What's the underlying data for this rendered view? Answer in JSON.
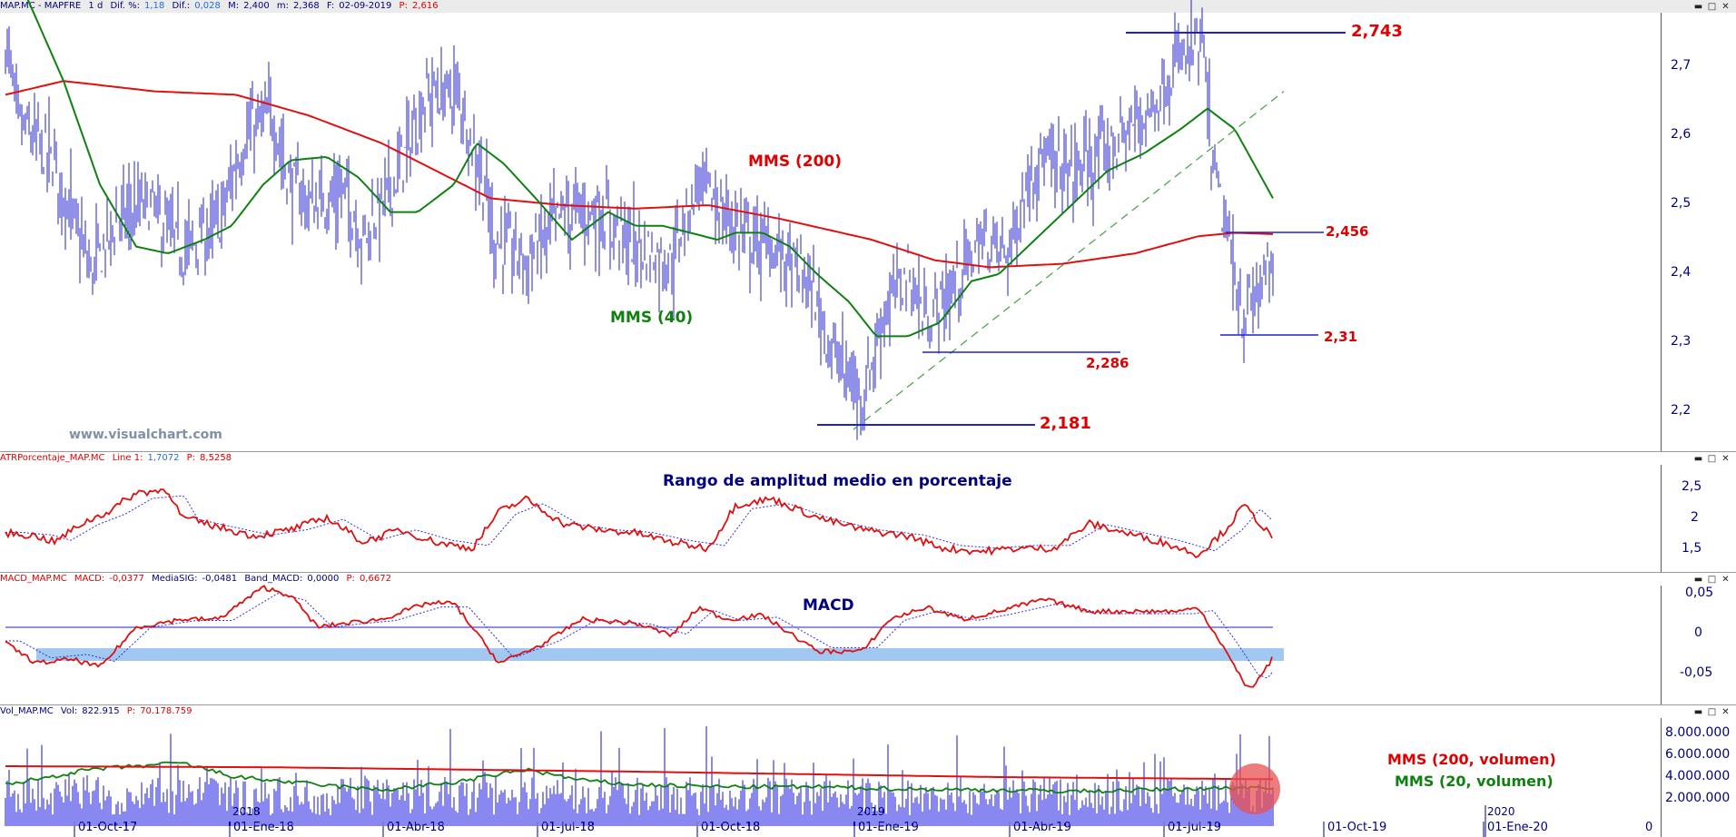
{
  "colors": {
    "price_bars": "#2020d0",
    "ma200": "#e01010",
    "ma40": "#108010",
    "axis_text": "#000080",
    "annotation_red": "#e00000",
    "annotation_green": "#108010",
    "macd_band": "#a0c8f0",
    "volume_bars": "#1010e0",
    "highlight_circle": "#e85050"
  },
  "header": {
    "symbol": "MAP.MC - MAPFRE",
    "period": "1 d",
    "dif_pct_label": "Dif. %:",
    "dif_pct": "1,18",
    "dif_label": "Dif.:",
    "dif": "0,028",
    "max_label": "M:",
    "max": "2,400",
    "min_label": "m:",
    "min": "2,368",
    "date_label": "F:",
    "date": "02-09-2019",
    "close_label": "P:",
    "close": "2,616"
  },
  "window_buttons": {
    "minimize": "▬",
    "restore": "□",
    "close": "✕"
  },
  "watermark": "www.visualchart.com",
  "price_panel": {
    "y_ticks": [
      "2,7",
      "2,6",
      "2,5",
      "2,4",
      "2,3",
      "2,2"
    ],
    "annotations": {
      "ma200": "MMS (200)",
      "ma40": "MMS (40)",
      "level_high": "2,743",
      "level_456": "2,456",
      "level_31": "2,31",
      "level_286": "2,286",
      "level_low": "2,181"
    }
  },
  "atr_panel": {
    "label": "ATRPorcentaje_MAP.MC",
    "line_label": "Line 1:",
    "line_value": "1,7072",
    "p_label": "P:",
    "p_value": "8,5258",
    "title": "Rango de amplitud medio en porcentaje",
    "y_ticks": [
      "2,5",
      "2",
      "1,5"
    ]
  },
  "macd_panel": {
    "label": "MACD_MAP.MC",
    "macd_label": "MACD:",
    "macd_value": "-0,0377",
    "sig_label": "MediaSIG:",
    "sig_value": "-0,0481",
    "band_label": "Band_MACD:",
    "band_value": "0,0000",
    "p_label": "P:",
    "p_value": "0,6672",
    "title": "MACD",
    "y_ticks": [
      "0,05",
      "0",
      "-0,05"
    ]
  },
  "volume_panel": {
    "label": "Vol_MAP.MC",
    "vol_label": "Vol:",
    "vol_value": "822.915",
    "p_label": "P:",
    "p_value": "70.178.759",
    "y_ticks": [
      "8.000.000",
      "6.000.000",
      "4.000.000",
      "2.000.000"
    ],
    "ma200_label": "MMS (200, volumen)",
    "ma20_label": "MMS (20, volumen)"
  },
  "x_axis": {
    "labels": [
      "01-Oct-17",
      "01-Ene-18",
      "01-Abr-18",
      "01-Jul-18",
      "01-Oct-18",
      "01-Ene-19",
      "01-Abr-19",
      "01-Jul-19",
      "01-Oct-19",
      "01-Ene-20",
      "0"
    ],
    "year_labels": [
      "2018",
      "2019",
      "2020"
    ]
  },
  "chart_data": {
    "type": "line",
    "title": "",
    "price_range": [
      2.15,
      2.77
    ],
    "ma200_approx": {
      "x": [
        "2017-08",
        "2017-10",
        "2018-01",
        "2018-04",
        "2018-07",
        "2018-10",
        "2019-01",
        "2019-04",
        "2019-07",
        "2019-09"
      ],
      "y": [
        2.66,
        2.68,
        2.66,
        2.58,
        2.51,
        2.5,
        2.44,
        2.41,
        2.44,
        2.46
      ]
    },
    "ma40_approx": {
      "x": [
        "2017-08",
        "2017-11",
        "2018-01",
        "2018-03",
        "2018-05",
        "2018-07",
        "2018-10",
        "2019-01",
        "2019-03",
        "2019-05",
        "2019-07",
        "2019-09"
      ],
      "y": [
        2.8,
        2.43,
        2.46,
        2.57,
        2.5,
        2.48,
        2.46,
        2.33,
        2.4,
        2.5,
        2.64,
        2.51
      ]
    },
    "levels": [
      2.743,
      2.456,
      2.31,
      2.286,
      2.181
    ]
  }
}
